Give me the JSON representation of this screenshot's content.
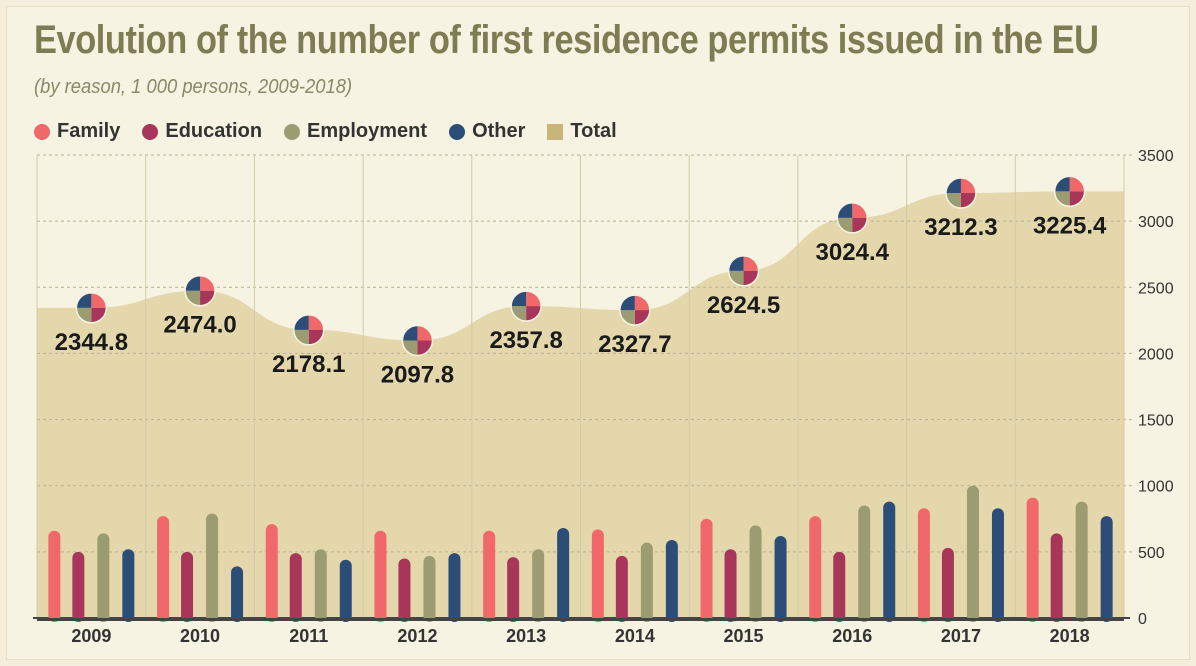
{
  "title": "Evolution of the number of first residence permits issued in the EU",
  "subtitle": "(by reason, 1 000 persons, 2009-2018)",
  "legend": [
    {
      "label": "Family",
      "color": "#f0686a",
      "shape": "dot"
    },
    {
      "label": "Education",
      "color": "#a8365a",
      "shape": "dot"
    },
    {
      "label": "Employment",
      "color": "#9b9c72",
      "shape": "dot"
    },
    {
      "label": "Other",
      "color": "#2c4d78",
      "shape": "dot"
    },
    {
      "label": "Total",
      "color": "#c7b677",
      "shape": "square"
    }
  ],
  "chart_data": {
    "type": "bar",
    "categories": [
      "2009",
      "2010",
      "2011",
      "2012",
      "2013",
      "2014",
      "2015",
      "2016",
      "2017",
      "2018"
    ],
    "series": [
      {
        "name": "Family",
        "color": "#f0686a",
        "values": [
          660,
          770,
          710,
          660,
          660,
          670,
          750,
          770,
          830,
          910
        ]
      },
      {
        "name": "Education",
        "color": "#a8365a",
        "values": [
          500,
          500,
          490,
          450,
          460,
          470,
          520,
          500,
          530,
          640
        ]
      },
      {
        "name": "Employment",
        "color": "#9b9c72",
        "values": [
          640,
          790,
          520,
          470,
          520,
          570,
          700,
          850,
          1000,
          880
        ]
      },
      {
        "name": "Other",
        "color": "#2c4d78",
        "values": [
          520,
          390,
          440,
          490,
          680,
          590,
          620,
          880,
          830,
          770
        ]
      }
    ],
    "total": {
      "name": "Total",
      "color": "#e3d7ab",
      "values": [
        2344.8,
        2474.0,
        2178.1,
        2097.8,
        2357.8,
        2327.7,
        2624.5,
        3024.4,
        3212.3,
        3225.4
      ],
      "labels": [
        "2344.8",
        "2474.0",
        "2178.1",
        "2097.8",
        "2357.8",
        "2327.7",
        "2624.5",
        "3024.4",
        "3212.3",
        "3225.4"
      ]
    },
    "y_ticks": [
      "0",
      "500",
      "1000",
      "1500",
      "2000",
      "2500",
      "3000",
      "3500"
    ],
    "ylim": [
      0,
      3500
    ],
    "grid": true
  }
}
